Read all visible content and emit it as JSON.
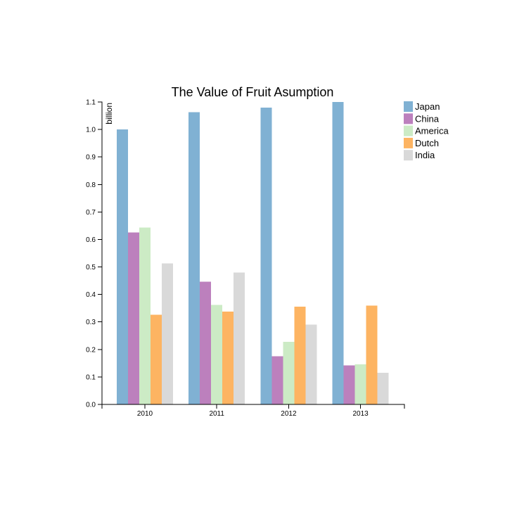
{
  "chart_data": {
    "type": "bar",
    "title": "The Value of Fruit Asumption",
    "xlabel": "",
    "ylabel": "billion",
    "ylim": [
      0,
      1.1
    ],
    "y_ticks": [
      "0.0",
      "0.1",
      "0.2",
      "0.3",
      "0.4",
      "0.5",
      "0.6",
      "0.7",
      "0.8",
      "0.9",
      "1.0",
      "1.1"
    ],
    "categories": [
      "2010",
      "2011",
      "2012",
      "2013"
    ],
    "series": [
      {
        "name": "Japan",
        "color": "#80b1d3",
        "values": [
          1.0,
          1.063,
          1.08,
          1.1
        ]
      },
      {
        "name": "China",
        "color": "#bc80bd",
        "values": [
          0.625,
          0.447,
          0.175,
          0.142
        ]
      },
      {
        "name": "America",
        "color": "#ccebc5",
        "values": [
          0.643,
          0.362,
          0.228,
          0.146
        ]
      },
      {
        "name": "Dutch",
        "color": "#fdb462",
        "values": [
          0.326,
          0.338,
          0.355,
          0.36
        ]
      },
      {
        "name": "India",
        "color": "#d9d9d9",
        "values": [
          0.513,
          0.48,
          0.29,
          0.115
        ]
      }
    ],
    "grid": false,
    "legend_position": "top-right"
  }
}
